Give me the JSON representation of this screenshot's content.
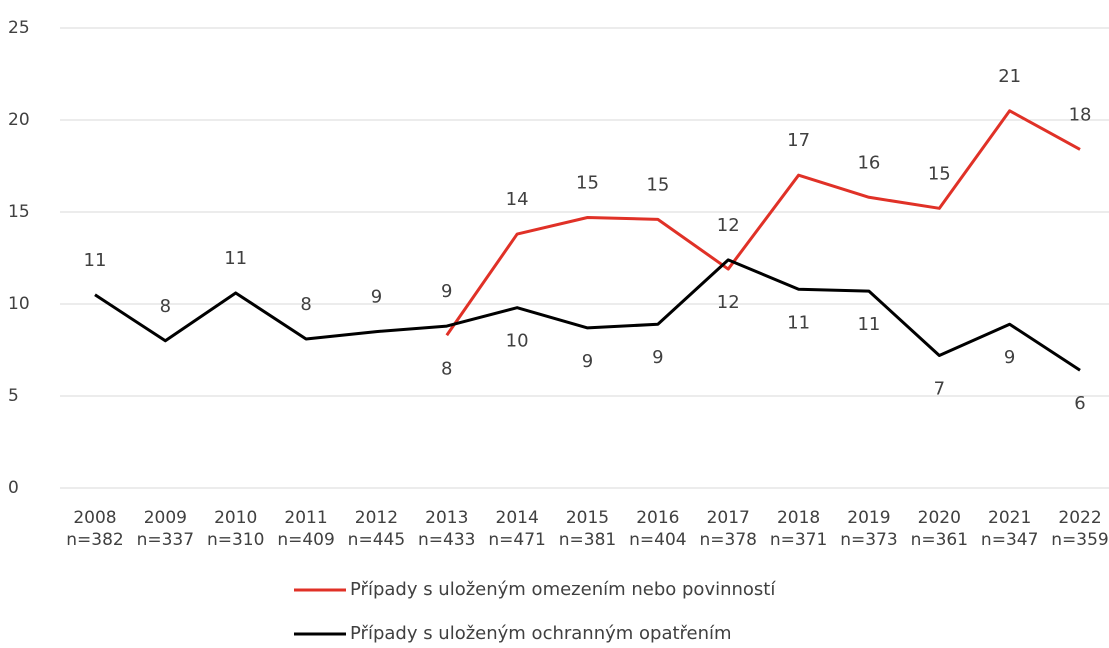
{
  "chart_data": {
    "type": "line",
    "categories": [
      "2008",
      "2009",
      "2010",
      "2011",
      "2012",
      "2013",
      "2014",
      "2015",
      "2016",
      "2017",
      "2018",
      "2019",
      "2020",
      "2021",
      "2022"
    ],
    "category_subtitles": [
      "n=382",
      "n=337",
      "n=310",
      "n=409",
      "n=445",
      "n=433",
      "n=471",
      "n=381",
      "n=404",
      "n=378",
      "n=371",
      "n=373",
      "n=361",
      "n=347",
      "n=359"
    ],
    "series": [
      {
        "name": "Případy s uloženým omezením nebo povinností",
        "color": "#e03127",
        "values": [
          null,
          null,
          null,
          null,
          null,
          8.3,
          13.8,
          14.7,
          14.6,
          11.9,
          17.0,
          15.8,
          15.2,
          20.5,
          18.4
        ],
        "value_labels": [
          null,
          null,
          null,
          null,
          null,
          "8",
          "14",
          "15",
          "15",
          "12",
          "17",
          "16",
          "15",
          "21",
          "18"
        ]
      },
      {
        "name": "Případy s uloženým ochranným opatřením",
        "color": "#000000",
        "values": [
          10.5,
          8.0,
          10.6,
          8.1,
          8.5,
          8.8,
          9.8,
          8.7,
          8.9,
          12.4,
          10.8,
          10.7,
          7.2,
          8.9,
          6.4
        ],
        "value_labels": [
          "11",
          "8",
          "11",
          "8",
          "9",
          "9",
          "10",
          "9",
          "9",
          "12",
          "11",
          "11",
          "7",
          "9",
          "6"
        ]
      }
    ],
    "ylim": [
      0,
      25
    ],
    "yticks": [
      0,
      5,
      10,
      15,
      20,
      25
    ],
    "grid": true,
    "legend": "bottom"
  }
}
